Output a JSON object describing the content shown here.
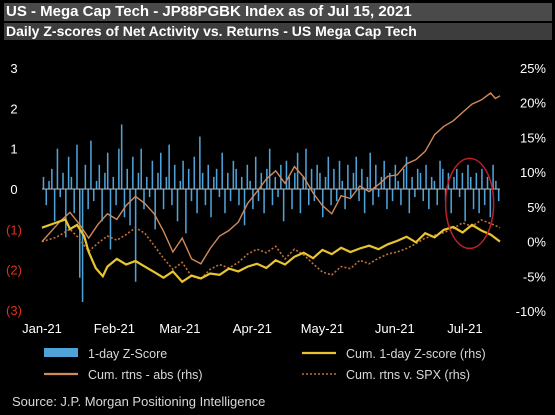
{
  "title": "US - Mega Cap Tech - JP88PGBK Index as of Jul 15, 2021",
  "subtitle": "Daily Z-scores of Net Activity vs. Returns - US Mega Cap Tech",
  "source": "Source: J.P. Morgan Positioning Intelligence",
  "colors": {
    "zscore_bar": "#4fa3d8",
    "cum_zscore": "#e8c530",
    "cum_abs": "#d08a5a",
    "cum_vspx": "#c0703a",
    "negative_label": "#e0301e",
    "highlight_circle": "#c0202a"
  },
  "chart_data": {
    "type": "bar+line",
    "left_axis": {
      "ylim": [
        -3,
        3
      ],
      "ticks": [
        {
          "value": 3,
          "label": "3"
        },
        {
          "value": 2,
          "label": "2"
        },
        {
          "value": 1,
          "label": "1"
        },
        {
          "value": 0,
          "label": "0"
        },
        {
          "value": -1,
          "label": "(1)"
        },
        {
          "value": -2,
          "label": "(2)"
        },
        {
          "value": -3,
          "label": "(3)"
        }
      ]
    },
    "right_axis": {
      "ylim": [
        -10,
        25
      ],
      "ticks": [
        "25%",
        "20%",
        "15%",
        "10%",
        "5%",
        "0%",
        "-5%",
        "-10%"
      ],
      "tick_values": [
        25,
        20,
        15,
        10,
        5,
        0,
        -5,
        -10
      ]
    },
    "x_tick_labels": [
      "Jan-21",
      "Feb-21",
      "Mar-21",
      "Apr-21",
      "May-21",
      "Jun-21",
      "Jul-21"
    ],
    "x_range_days": [
      0,
      196
    ],
    "series": [
      {
        "name": "1-day Z-Score",
        "kind": "bar",
        "axis": "left",
        "values": [
          0.3,
          -0.4,
          0.2,
          0.5,
          -0.8,
          1.0,
          -0.2,
          0.4,
          -1.2,
          0.8,
          0.3,
          -0.6,
          1.1,
          -2.2,
          -2.8,
          0.6,
          -0.5,
          1.2,
          -0.3,
          0.2,
          0.6,
          -0.8,
          0.4,
          0.9,
          -1.5,
          0.3,
          -0.4,
          1.0,
          1.6,
          -0.7,
          0.5,
          -0.9,
          0.8,
          -2.3,
          0.4,
          1.0,
          -0.5,
          0.3,
          -0.2,
          0.7,
          -1.0,
          0.4,
          0.9,
          -0.5,
          0.3,
          1.1,
          -0.4,
          0.6,
          -0.8,
          0.2,
          0.7,
          -1.1,
          0.5,
          -0.3,
          0.8,
          -0.6,
          1.3,
          0.4,
          -0.4,
          0.6,
          -0.7,
          0.3,
          0.5,
          -0.2,
          0.9,
          -0.6,
          0.4,
          -0.3,
          0.7,
          0.5,
          -0.4,
          0.3,
          -0.9,
          0.6,
          0.2,
          -0.5,
          0.8,
          -0.3,
          0.4,
          -0.6,
          0.5,
          1.0,
          -0.4,
          0.3,
          -0.2,
          0.6,
          -0.8,
          0.7,
          0.3,
          -0.5,
          0.4,
          0.9,
          -0.6,
          0.3,
          1.0,
          -0.4,
          0.5,
          -0.3,
          0.6,
          0.4,
          -0.7,
          0.3,
          0.8,
          -0.4,
          0.5,
          -0.3,
          0.7,
          0.2,
          -0.5,
          0.6,
          -0.2,
          0.4,
          0.8,
          -0.3,
          0.5,
          -0.6,
          0.3,
          0.9,
          -0.4,
          0.6,
          -0.2,
          0.3,
          0.7,
          -0.5,
          0.4,
          -0.3,
          0.6,
          0.2,
          -0.4,
          0.5,
          0.8,
          -0.6,
          0.3,
          -0.2,
          0.5,
          0.4,
          -0.3,
          0.6,
          -0.5,
          0.3,
          0.2,
          -0.4,
          0.7,
          0.5,
          -0.3,
          0.4,
          -0.6,
          0.3,
          0.5,
          -0.2,
          0.4,
          -0.8,
          0.6,
          0.3,
          -0.5,
          0.4,
          -0.6,
          0.5,
          -0.4,
          0.3,
          -0.7,
          0.6,
          0.2,
          -0.3
        ],
        "color": "#4fa3d8"
      },
      {
        "name": "Cum. 1-day Z-score (rhs)",
        "kind": "line",
        "axis": "right",
        "points": [
          [
            0,
            2
          ],
          [
            5,
            2.6
          ],
          [
            10,
            3.2
          ],
          [
            12,
            1.8
          ],
          [
            15,
            2.4
          ],
          [
            18,
            0.8
          ],
          [
            20,
            -1.5
          ],
          [
            23,
            -3.8
          ],
          [
            26,
            -5
          ],
          [
            28,
            -3.6
          ],
          [
            32,
            -2.5
          ],
          [
            36,
            -3.3
          ],
          [
            40,
            -2.8
          ],
          [
            44,
            -3.6
          ],
          [
            48,
            -4.4
          ],
          [
            52,
            -5.2
          ],
          [
            56,
            -4.3
          ],
          [
            60,
            -5.8
          ],
          [
            64,
            -4.9
          ],
          [
            68,
            -5.3
          ],
          [
            72,
            -4.6
          ],
          [
            76,
            -4.8
          ],
          [
            80,
            -3.9
          ],
          [
            84,
            -4.3
          ],
          [
            88,
            -3.6
          ],
          [
            92,
            -3.2
          ],
          [
            96,
            -3.8
          ],
          [
            100,
            -2.7
          ],
          [
            104,
            -3.3
          ],
          [
            108,
            -2.2
          ],
          [
            112,
            -1.6
          ],
          [
            116,
            -2.4
          ],
          [
            120,
            -1.2
          ],
          [
            124,
            -1.8
          ],
          [
            128,
            -0.9
          ],
          [
            132,
            -1.5
          ],
          [
            136,
            -1.0
          ],
          [
            140,
            -0.6
          ],
          [
            144,
            -1.1
          ],
          [
            148,
            -0.4
          ],
          [
            152,
            0.1
          ],
          [
            156,
            0.7
          ],
          [
            160,
            -0.1
          ],
          [
            164,
            1.2
          ],
          [
            168,
            0.6
          ],
          [
            172,
            1.7
          ],
          [
            176,
            2.1
          ],
          [
            180,
            1.3
          ],
          [
            184,
            2.4
          ],
          [
            188,
            1.6
          ],
          [
            192,
            1.0
          ],
          [
            196,
            0.0
          ]
        ],
        "color": "#e8c530"
      },
      {
        "name": "Cum. rtns - abs (rhs)",
        "kind": "line",
        "axis": "right",
        "points": [
          [
            0,
            0
          ],
          [
            4,
            1.5
          ],
          [
            8,
            3.0
          ],
          [
            12,
            4.2
          ],
          [
            16,
            2.5
          ],
          [
            20,
            0.5
          ],
          [
            24,
            2.5
          ],
          [
            28,
            4.0
          ],
          [
            32,
            3.2
          ],
          [
            36,
            5.2
          ],
          [
            40,
            6.5
          ],
          [
            44,
            5.5
          ],
          [
            48,
            4.0
          ],
          [
            52,
            1.5
          ],
          [
            56,
            -1.5
          ],
          [
            60,
            0.5
          ],
          [
            64,
            -2.5
          ],
          [
            68,
            -3.2
          ],
          [
            72,
            -1.0
          ],
          [
            76,
            0.8
          ],
          [
            80,
            1.6
          ],
          [
            84,
            2.8
          ],
          [
            88,
            5.5
          ],
          [
            92,
            7.2
          ],
          [
            96,
            9.0
          ],
          [
            100,
            10.2
          ],
          [
            104,
            8.4
          ],
          [
            108,
            10.8
          ],
          [
            112,
            9.3
          ],
          [
            116,
            7.0
          ],
          [
            120,
            5.2
          ],
          [
            124,
            4.0
          ],
          [
            128,
            6.6
          ],
          [
            132,
            6.2
          ],
          [
            136,
            8.0
          ],
          [
            140,
            7.2
          ],
          [
            144,
            8.2
          ],
          [
            148,
            9.4
          ],
          [
            152,
            9.6
          ],
          [
            156,
            11.2
          ],
          [
            160,
            11.8
          ],
          [
            164,
            13.0
          ],
          [
            168,
            15.4
          ],
          [
            172,
            16.6
          ],
          [
            176,
            17.4
          ],
          [
            180,
            18.6
          ],
          [
            184,
            19.8
          ],
          [
            188,
            20.4
          ],
          [
            192,
            21.4
          ],
          [
            194,
            20.6
          ],
          [
            196,
            21.0
          ]
        ],
        "color": "#d08a5a"
      },
      {
        "name": "Cum. rtns v. SPX (rhs)",
        "kind": "line",
        "style": "dotted",
        "axis": "right",
        "points": [
          [
            0,
            0
          ],
          [
            6,
            0.6
          ],
          [
            12,
            1.8
          ],
          [
            16,
            0.4
          ],
          [
            20,
            -1.4
          ],
          [
            24,
            -0.2
          ],
          [
            28,
            0.8
          ],
          [
            32,
            0.2
          ],
          [
            36,
            1.0
          ],
          [
            40,
            2.0
          ],
          [
            44,
            1.2
          ],
          [
            48,
            -0.6
          ],
          [
            52,
            -2.4
          ],
          [
            56,
            -4.0
          ],
          [
            60,
            -3.0
          ],
          [
            64,
            -5.0
          ],
          [
            68,
            -5.4
          ],
          [
            72,
            -4.0
          ],
          [
            76,
            -3.3
          ],
          [
            80,
            -3.8
          ],
          [
            84,
            -3.0
          ],
          [
            88,
            -1.8
          ],
          [
            92,
            -1.1
          ],
          [
            96,
            -1.6
          ],
          [
            100,
            -0.7
          ],
          [
            104,
            -2.5
          ],
          [
            108,
            -1.1
          ],
          [
            112,
            -1.9
          ],
          [
            116,
            -3.2
          ],
          [
            120,
            -4.4
          ],
          [
            124,
            -4.8
          ],
          [
            128,
            -3.6
          ],
          [
            132,
            -3.9
          ],
          [
            136,
            -2.7
          ],
          [
            140,
            -3.2
          ],
          [
            144,
            -2.4
          ],
          [
            148,
            -1.8
          ],
          [
            152,
            -1.5
          ],
          [
            156,
            -1.0
          ],
          [
            160,
            -0.3
          ],
          [
            164,
            0.5
          ],
          [
            168,
            0.9
          ],
          [
            172,
            1.3
          ],
          [
            176,
            1.9
          ],
          [
            180,
            2.7
          ],
          [
            184,
            2.2
          ],
          [
            188,
            3.1
          ],
          [
            192,
            2.6
          ],
          [
            196,
            2.0
          ]
        ],
        "color": "#c0703a"
      }
    ],
    "grid": false,
    "legend_placement": "bottom"
  }
}
